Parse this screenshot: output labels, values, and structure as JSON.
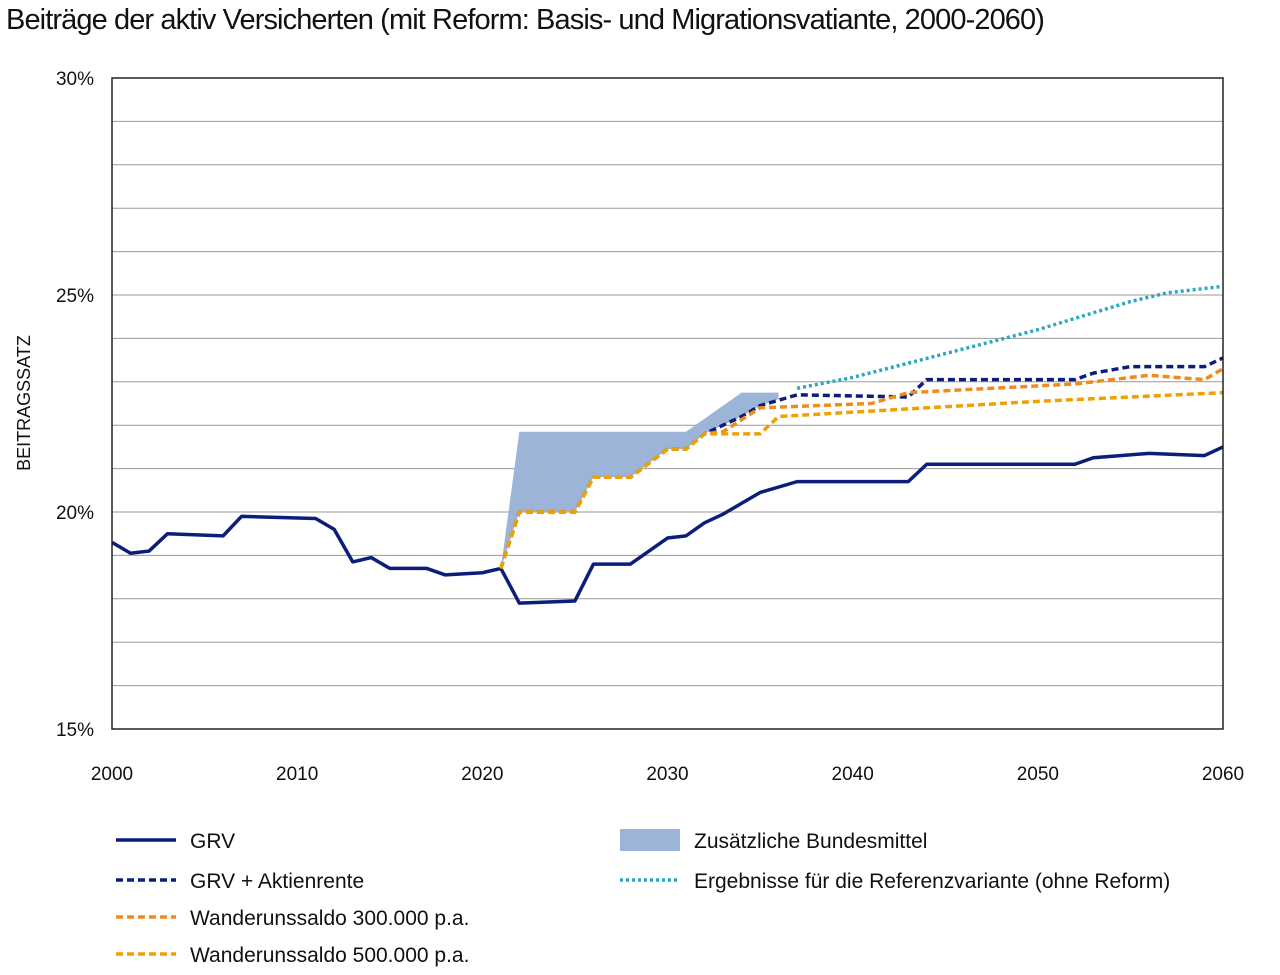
{
  "chart_data": {
    "type": "line",
    "title": "Beiträge der aktiv Versicherten (mit Reform: Basis- und Migrationsvatiante, 2000-2060)",
    "xlabel": "",
    "ylabel": "BEITRAGSSATZ",
    "xlim": [
      2000,
      2060
    ],
    "ylim": [
      15,
      30
    ],
    "x_ticks": [
      2000,
      2010,
      2020,
      2030,
      2040,
      2050,
      2060
    ],
    "x_tick_labels": [
      "2000",
      "2010",
      "2020",
      "2030",
      "2040",
      "2050",
      "2060"
    ],
    "y_ticks": [
      15,
      20,
      25,
      30
    ],
    "y_tick_labels": [
      "15%",
      "20%",
      "25%",
      "30%"
    ],
    "y_minor_step": 1,
    "grid": "horizontal",
    "legend_position": "bottom",
    "series": [
      {
        "name": "GRV",
        "color": "#0b1f7a",
        "style": "solid",
        "points": [
          [
            2000,
            19.3
          ],
          [
            2001,
            19.05
          ],
          [
            2002,
            19.1
          ],
          [
            2003,
            19.5
          ],
          [
            2006,
            19.45
          ],
          [
            2007,
            19.9
          ],
          [
            2011,
            19.85
          ],
          [
            2012,
            19.6
          ],
          [
            2013,
            18.85
          ],
          [
            2014,
            18.95
          ],
          [
            2015,
            18.7
          ],
          [
            2017,
            18.7
          ],
          [
            2018,
            18.55
          ],
          [
            2020,
            18.6
          ],
          [
            2021,
            18.7
          ],
          [
            2022,
            17.9
          ],
          [
            2025,
            17.95
          ],
          [
            2026,
            18.8
          ],
          [
            2028,
            18.8
          ],
          [
            2030,
            19.4
          ],
          [
            2031,
            19.45
          ],
          [
            2032,
            19.75
          ],
          [
            2033,
            19.95
          ],
          [
            2035,
            20.45
          ],
          [
            2037,
            20.7
          ],
          [
            2043,
            20.7
          ],
          [
            2044,
            21.1
          ],
          [
            2052,
            21.1
          ],
          [
            2053,
            21.25
          ],
          [
            2056,
            21.35
          ],
          [
            2059,
            21.3
          ],
          [
            2060,
            21.5
          ]
        ]
      },
      {
        "name": "GRV + Aktienrente",
        "color": "#0b1f7a",
        "style": "dashed",
        "points": [
          [
            2021,
            18.7
          ],
          [
            2022,
            20.0
          ],
          [
            2025,
            20.0
          ],
          [
            2026,
            20.8
          ],
          [
            2028,
            20.8
          ],
          [
            2030,
            21.45
          ],
          [
            2031,
            21.45
          ],
          [
            2032,
            21.8
          ],
          [
            2034,
            22.2
          ],
          [
            2035,
            22.45
          ],
          [
            2037,
            22.7
          ],
          [
            2043,
            22.65
          ],
          [
            2044,
            23.05
          ],
          [
            2052,
            23.05
          ],
          [
            2053,
            23.2
          ],
          [
            2055,
            23.35
          ],
          [
            2059,
            23.35
          ],
          [
            2060,
            23.55
          ]
        ]
      },
      {
        "name": "Wanderunssaldo 300.000 p.a.",
        "color": "#f08a1c",
        "style": "dashed",
        "points": [
          [
            2021,
            18.7
          ],
          [
            2022,
            20.0
          ],
          [
            2025,
            20.0
          ],
          [
            2026,
            20.8
          ],
          [
            2028,
            20.8
          ],
          [
            2030,
            21.45
          ],
          [
            2031,
            21.45
          ],
          [
            2032,
            21.8
          ],
          [
            2033,
            21.85
          ],
          [
            2035,
            22.4
          ],
          [
            2041,
            22.5
          ],
          [
            2043,
            22.75
          ],
          [
            2052,
            22.95
          ],
          [
            2056,
            23.15
          ],
          [
            2059,
            23.05
          ],
          [
            2060,
            23.3
          ]
        ]
      },
      {
        "name": "Wanderunssaldo 500.000 p.a.",
        "color": "#f0a000",
        "style": "dashed",
        "points": [
          [
            2021,
            18.7
          ],
          [
            2022,
            20.0
          ],
          [
            2025,
            20.0
          ],
          [
            2026,
            20.8
          ],
          [
            2028,
            20.8
          ],
          [
            2030,
            21.45
          ],
          [
            2031,
            21.45
          ],
          [
            2032,
            21.8
          ],
          [
            2033,
            21.8
          ],
          [
            2035,
            21.8
          ],
          [
            2036,
            22.2
          ],
          [
            2040,
            22.3
          ],
          [
            2050,
            22.55
          ],
          [
            2060,
            22.75
          ]
        ]
      },
      {
        "name": "Ergebnisse für die Referenzvariante (ohne Reform)",
        "color": "#2aa7c4",
        "style": "dotted",
        "points": [
          [
            2037,
            22.85
          ],
          [
            2040,
            23.1
          ],
          [
            2045,
            23.65
          ],
          [
            2050,
            24.2
          ],
          [
            2055,
            24.85
          ],
          [
            2057,
            25.05
          ],
          [
            2060,
            25.2
          ]
        ]
      }
    ],
    "area": {
      "name": "Zusätzliche Bundesmittel",
      "color": "#9bb4d8",
      "upper": [
        [
          2021,
          18.7
        ],
        [
          2022,
          21.85
        ],
        [
          2031,
          21.85
        ],
        [
          2034,
          22.75
        ],
        [
          2036,
          22.75
        ]
      ],
      "lower": [
        [
          2021,
          18.7
        ],
        [
          2022,
          20.0
        ],
        [
          2025,
          20.0
        ],
        [
          2026,
          20.8
        ],
        [
          2028,
          20.8
        ],
        [
          2030,
          21.45
        ],
        [
          2031,
          21.45
        ],
        [
          2032,
          21.8
        ],
        [
          2034,
          22.2
        ],
        [
          2035,
          22.45
        ],
        [
          2036,
          22.6
        ]
      ]
    }
  }
}
